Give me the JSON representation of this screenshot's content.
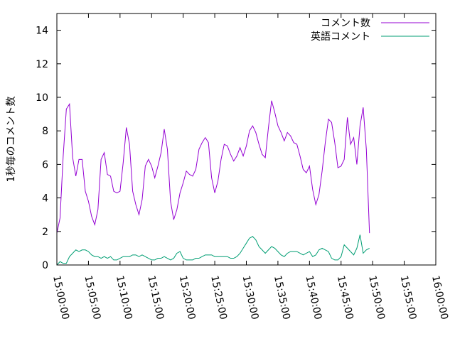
{
  "chart_data": {
    "type": "line",
    "ylabel": "1秒毎のコメント数",
    "xlabel": "",
    "title": "",
    "ylim": [
      0,
      15
    ],
    "yticks": [
      "0",
      "2",
      "4",
      "6",
      "8",
      "10",
      "12",
      "14"
    ],
    "xlim_minutes": [
      0,
      60
    ],
    "xticks": [
      "15:00:00",
      "15:05:00",
      "15:10:00",
      "15:15:00",
      "15:20:00",
      "15:25:00",
      "15:30:00",
      "15:35:00",
      "15:40:00",
      "15:45:00",
      "15:50:00",
      "15:55:00",
      "16:00:00"
    ],
    "grid": false,
    "legend_position": "top-right",
    "series": [
      {
        "name": "コメント数",
        "color": "#9400d3",
        "points": [
          [
            "15:00:00",
            1.9
          ],
          [
            "15:00:30",
            2.8
          ],
          [
            "15:01:00",
            6.5
          ],
          [
            "15:01:30",
            9.3
          ],
          [
            "15:02:00",
            9.6
          ],
          [
            "15:02:30",
            6.4
          ],
          [
            "15:03:00",
            5.3
          ],
          [
            "15:03:30",
            6.3
          ],
          [
            "15:04:00",
            6.3
          ],
          [
            "15:04:30",
            4.4
          ],
          [
            "15:05:00",
            3.8
          ],
          [
            "15:05:30",
            2.9
          ],
          [
            "15:06:00",
            2.4
          ],
          [
            "15:06:30",
            3.3
          ],
          [
            "15:07:00",
            6.3
          ],
          [
            "15:07:30",
            6.7
          ],
          [
            "15:08:00",
            5.4
          ],
          [
            "15:08:30",
            5.3
          ],
          [
            "15:09:00",
            4.4
          ],
          [
            "15:09:30",
            4.3
          ],
          [
            "15:10:00",
            4.4
          ],
          [
            "15:10:30",
            6.1
          ],
          [
            "15:11:00",
            8.2
          ],
          [
            "15:11:30",
            7.2
          ],
          [
            "15:12:00",
            4.4
          ],
          [
            "15:12:30",
            3.6
          ],
          [
            "15:13:00",
            3.0
          ],
          [
            "15:13:30",
            3.9
          ],
          [
            "15:14:00",
            5.9
          ],
          [
            "15:14:30",
            6.3
          ],
          [
            "15:15:00",
            5.9
          ],
          [
            "15:15:30",
            5.2
          ],
          [
            "15:16:00",
            5.9
          ],
          [
            "15:16:30",
            6.7
          ],
          [
            "15:17:00",
            8.1
          ],
          [
            "15:17:30",
            6.9
          ],
          [
            "15:18:00",
            3.8
          ],
          [
            "15:18:30",
            2.7
          ],
          [
            "15:19:00",
            3.3
          ],
          [
            "15:19:30",
            4.3
          ],
          [
            "15:20:00",
            4.9
          ],
          [
            "15:20:30",
            5.6
          ],
          [
            "15:21:00",
            5.4
          ],
          [
            "15:21:30",
            5.3
          ],
          [
            "15:22:00",
            5.7
          ],
          [
            "15:22:30",
            6.9
          ],
          [
            "15:23:00",
            7.3
          ],
          [
            "15:23:30",
            7.6
          ],
          [
            "15:24:00",
            7.3
          ],
          [
            "15:24:30",
            5.2
          ],
          [
            "15:25:00",
            4.3
          ],
          [
            "15:25:30",
            5.0
          ],
          [
            "15:26:00",
            6.3
          ],
          [
            "15:26:30",
            7.2
          ],
          [
            "15:27:00",
            7.1
          ],
          [
            "15:27:30",
            6.6
          ],
          [
            "15:28:00",
            6.2
          ],
          [
            "15:28:30",
            6.5
          ],
          [
            "15:29:00",
            7.0
          ],
          [
            "15:29:30",
            6.5
          ],
          [
            "15:30:00",
            7.1
          ],
          [
            "15:30:30",
            8.0
          ],
          [
            "15:31:00",
            8.3
          ],
          [
            "15:31:30",
            7.9
          ],
          [
            "15:32:00",
            7.2
          ],
          [
            "15:32:30",
            6.6
          ],
          [
            "15:33:00",
            6.4
          ],
          [
            "15:33:30",
            8.2
          ],
          [
            "15:34:00",
            9.8
          ],
          [
            "15:34:30",
            9.1
          ],
          [
            "15:35:00",
            8.3
          ],
          [
            "15:35:30",
            7.9
          ],
          [
            "15:36:00",
            7.4
          ],
          [
            "15:36:30",
            7.9
          ],
          [
            "15:37:00",
            7.7
          ],
          [
            "15:37:30",
            7.3
          ],
          [
            "15:38:00",
            7.2
          ],
          [
            "15:38:30",
            6.5
          ],
          [
            "15:39:00",
            5.7
          ],
          [
            "15:39:30",
            5.5
          ],
          [
            "15:40:00",
            5.9
          ],
          [
            "15:40:30",
            4.5
          ],
          [
            "15:41:00",
            3.6
          ],
          [
            "15:41:30",
            4.2
          ],
          [
            "15:42:00",
            5.6
          ],
          [
            "15:42:30",
            7.3
          ],
          [
            "15:43:00",
            8.7
          ],
          [
            "15:43:30",
            8.5
          ],
          [
            "15:44:00",
            7.3
          ],
          [
            "15:44:30",
            5.8
          ],
          [
            "15:45:00",
            5.9
          ],
          [
            "15:45:30",
            6.3
          ],
          [
            "15:46:00",
            8.8
          ],
          [
            "15:46:30",
            7.2
          ],
          [
            "15:47:00",
            7.6
          ],
          [
            "15:47:30",
            6.0
          ],
          [
            "15:48:00",
            8.3
          ],
          [
            "15:48:30",
            9.4
          ],
          [
            "15:49:00",
            6.9
          ],
          [
            "15:49:30",
            1.9
          ]
        ]
      },
      {
        "name": "英語コメント",
        "color": "#009e73",
        "points": [
          [
            "15:00:00",
            0.0
          ],
          [
            "15:00:30",
            0.2
          ],
          [
            "15:01:00",
            0.1
          ],
          [
            "15:01:30",
            0.1
          ],
          [
            "15:02:00",
            0.5
          ],
          [
            "15:02:30",
            0.7
          ],
          [
            "15:03:00",
            0.9
          ],
          [
            "15:03:30",
            0.8
          ],
          [
            "15:04:00",
            0.9
          ],
          [
            "15:04:30",
            0.9
          ],
          [
            "15:05:00",
            0.8
          ],
          [
            "15:05:30",
            0.6
          ],
          [
            "15:06:00",
            0.5
          ],
          [
            "15:06:30",
            0.5
          ],
          [
            "15:07:00",
            0.4
          ],
          [
            "15:07:30",
            0.5
          ],
          [
            "15:08:00",
            0.4
          ],
          [
            "15:08:30",
            0.5
          ],
          [
            "15:09:00",
            0.3
          ],
          [
            "15:09:30",
            0.3
          ],
          [
            "15:10:00",
            0.4
          ],
          [
            "15:10:30",
            0.5
          ],
          [
            "15:11:00",
            0.5
          ],
          [
            "15:11:30",
            0.5
          ],
          [
            "15:12:00",
            0.6
          ],
          [
            "15:12:30",
            0.6
          ],
          [
            "15:13:00",
            0.5
          ],
          [
            "15:13:30",
            0.6
          ],
          [
            "15:14:00",
            0.5
          ],
          [
            "15:14:30",
            0.4
          ],
          [
            "15:15:00",
            0.3
          ],
          [
            "15:15:30",
            0.3
          ],
          [
            "15:16:00",
            0.4
          ],
          [
            "15:16:30",
            0.4
          ],
          [
            "15:17:00",
            0.5
          ],
          [
            "15:17:30",
            0.4
          ],
          [
            "15:18:00",
            0.3
          ],
          [
            "15:18:30",
            0.4
          ],
          [
            "15:19:00",
            0.7
          ],
          [
            "15:19:30",
            0.8
          ],
          [
            "15:20:00",
            0.4
          ],
          [
            "15:20:30",
            0.3
          ],
          [
            "15:21:00",
            0.3
          ],
          [
            "15:21:30",
            0.3
          ],
          [
            "15:22:00",
            0.4
          ],
          [
            "15:22:30",
            0.4
          ],
          [
            "15:23:00",
            0.5
          ],
          [
            "15:23:30",
            0.6
          ],
          [
            "15:24:00",
            0.6
          ],
          [
            "15:24:30",
            0.6
          ],
          [
            "15:25:00",
            0.5
          ],
          [
            "15:25:30",
            0.5
          ],
          [
            "15:26:00",
            0.5
          ],
          [
            "15:26:30",
            0.5
          ],
          [
            "15:27:00",
            0.5
          ],
          [
            "15:27:30",
            0.4
          ],
          [
            "15:28:00",
            0.4
          ],
          [
            "15:28:30",
            0.5
          ],
          [
            "15:29:00",
            0.7
          ],
          [
            "15:29:30",
            1.0
          ],
          [
            "15:30:00",
            1.3
          ],
          [
            "15:30:30",
            1.6
          ],
          [
            "15:31:00",
            1.7
          ],
          [
            "15:31:30",
            1.5
          ],
          [
            "15:32:00",
            1.1
          ],
          [
            "15:32:30",
            0.9
          ],
          [
            "15:33:00",
            0.7
          ],
          [
            "15:33:30",
            0.9
          ],
          [
            "15:34:00",
            1.1
          ],
          [
            "15:34:30",
            1.0
          ],
          [
            "15:35:00",
            0.8
          ],
          [
            "15:35:30",
            0.6
          ],
          [
            "15:36:00",
            0.5
          ],
          [
            "15:36:30",
            0.7
          ],
          [
            "15:37:00",
            0.8
          ],
          [
            "15:37:30",
            0.8
          ],
          [
            "15:38:00",
            0.8
          ],
          [
            "15:38:30",
            0.7
          ],
          [
            "15:39:00",
            0.6
          ],
          [
            "15:39:30",
            0.7
          ],
          [
            "15:40:00",
            0.8
          ],
          [
            "15:40:30",
            0.5
          ],
          [
            "15:41:00",
            0.6
          ],
          [
            "15:41:30",
            0.9
          ],
          [
            "15:42:00",
            1.0
          ],
          [
            "15:42:30",
            0.9
          ],
          [
            "15:43:00",
            0.8
          ],
          [
            "15:43:30",
            0.4
          ],
          [
            "15:44:00",
            0.3
          ],
          [
            "15:44:30",
            0.3
          ],
          [
            "15:45:00",
            0.5
          ],
          [
            "15:45:30",
            1.2
          ],
          [
            "15:46:00",
            1.0
          ],
          [
            "15:46:30",
            0.8
          ],
          [
            "15:47:00",
            0.6
          ],
          [
            "15:47:30",
            1.0
          ],
          [
            "15:48:00",
            1.8
          ],
          [
            "15:48:30",
            0.7
          ],
          [
            "15:49:00",
            0.9
          ],
          [
            "15:49:30",
            1.0
          ]
        ]
      }
    ]
  }
}
